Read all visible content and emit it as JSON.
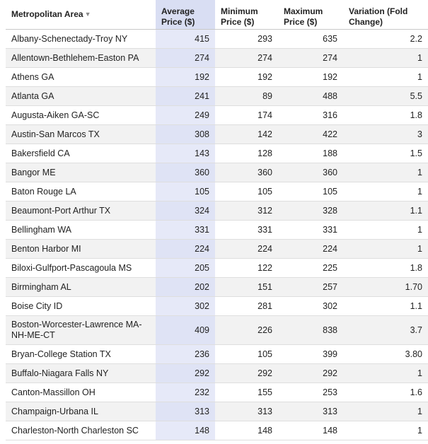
{
  "headers": {
    "metro": "Metropolitan Area",
    "sort_indicator": "▼",
    "avg": "Average Price ($)",
    "min": "Minimum Price ($)",
    "max": "Maximum Price ($)",
    "var": "Variation (Fold Change)"
  },
  "rows": [
    {
      "metro": "Albany-Schenectady-Troy NY",
      "avg": "415",
      "min": "293",
      "max": "635",
      "var": "2.2"
    },
    {
      "metro": "Allentown-Bethlehem-Easton PA",
      "avg": "274",
      "min": "274",
      "max": "274",
      "var": "1"
    },
    {
      "metro": "Athens GA",
      "avg": "192",
      "min": "192",
      "max": "192",
      "var": "1"
    },
    {
      "metro": "Atlanta GA",
      "avg": "241",
      "min": "89",
      "max": "488",
      "var": "5.5"
    },
    {
      "metro": "Augusta-Aiken GA-SC",
      "avg": "249",
      "min": "174",
      "max": "316",
      "var": "1.8"
    },
    {
      "metro": "Austin-San Marcos TX",
      "avg": "308",
      "min": "142",
      "max": "422",
      "var": "3"
    },
    {
      "metro": "Bakersfield CA",
      "avg": "143",
      "min": "128",
      "max": "188",
      "var": "1.5"
    },
    {
      "metro": "Bangor ME",
      "avg": "360",
      "min": "360",
      "max": "360",
      "var": "1"
    },
    {
      "metro": "Baton Rouge LA",
      "avg": "105",
      "min": "105",
      "max": "105",
      "var": "1"
    },
    {
      "metro": "Beaumont-Port Arthur TX",
      "avg": "324",
      "min": "312",
      "max": "328",
      "var": "1.1"
    },
    {
      "metro": "Bellingham WA",
      "avg": "331",
      "min": "331",
      "max": "331",
      "var": "1"
    },
    {
      "metro": "Benton Harbor MI",
      "avg": "224",
      "min": "224",
      "max": "224",
      "var": "1"
    },
    {
      "metro": "Biloxi-Gulfport-Pascagoula MS",
      "avg": "205",
      "min": "122",
      "max": "225",
      "var": "1.8"
    },
    {
      "metro": "Birmingham AL",
      "avg": "202",
      "min": "151",
      "max": "257",
      "var": "1.70"
    },
    {
      "metro": "Boise City ID",
      "avg": "302",
      "min": "281",
      "max": "302",
      "var": "1.1"
    },
    {
      "metro": "Boston-Worcester-Lawrence MA-NH-ME-CT",
      "avg": "409",
      "min": "226",
      "max": "838",
      "var": "3.7"
    },
    {
      "metro": "Bryan-College Station TX",
      "avg": "236",
      "min": "105",
      "max": "399",
      "var": "3.80"
    },
    {
      "metro": "Buffalo-Niagara Falls NY",
      "avg": "292",
      "min": "292",
      "max": "292",
      "var": "1"
    },
    {
      "metro": "Canton-Massillon OH",
      "avg": "232",
      "min": "155",
      "max": "253",
      "var": "1.6"
    },
    {
      "metro": "Champaign-Urbana IL",
      "avg": "313",
      "min": "313",
      "max": "313",
      "var": "1"
    },
    {
      "metro": "Charleston-North Charleston SC",
      "avg": "148",
      "min": "148",
      "max": "148",
      "var": "1"
    }
  ]
}
